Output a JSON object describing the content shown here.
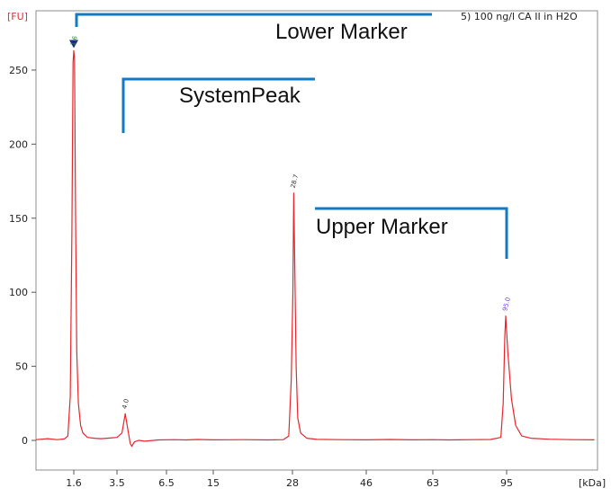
{
  "chart_data": {
    "type": "line",
    "title": "5) 100 ng/l CA II in H2O",
    "ylabel": "[FU]",
    "xlabel": "[kDa]",
    "ylim": [
      -20,
      290
    ],
    "yticks": [
      0,
      50,
      100,
      150,
      200,
      250
    ],
    "x_categorical_ticks": [
      "1.6",
      "3.5",
      "6.5",
      "15",
      "28",
      "46",
      "63",
      "95"
    ],
    "grid": true,
    "colors": {
      "trace": "#e8262b",
      "axis_label": "#e03030",
      "grid": "#c8cede",
      "window_line": "#2a9a6a",
      "marker_line": "#117ac2",
      "lower_marker_label": "#2e8b2e",
      "upper_marker_label": "#7a3fd8",
      "peak_label": "#333333",
      "marker_triangle": "#1b2a8a"
    },
    "series": [
      {
        "name": "",
        "points": [
          [
            0.0,
            0.5
          ],
          [
            0.5,
            1.2
          ],
          [
            0.9,
            0.5
          ],
          [
            1.2,
            1.0
          ],
          [
            1.35,
            3
          ],
          [
            1.45,
            30
          ],
          [
            1.52,
            140
          ],
          [
            1.57,
            255
          ],
          [
            1.6,
            263
          ],
          [
            1.63,
            258
          ],
          [
            1.68,
            150
          ],
          [
            1.73,
            60
          ],
          [
            1.8,
            25
          ],
          [
            1.9,
            10
          ],
          [
            2.0,
            5
          ],
          [
            2.2,
            2
          ],
          [
            2.5,
            1.5
          ],
          [
            2.8,
            1.2
          ],
          [
            3.5,
            2
          ],
          [
            3.8,
            5
          ],
          [
            4.0,
            18
          ],
          [
            4.15,
            8
          ],
          [
            4.3,
            -2
          ],
          [
            4.4,
            -4
          ],
          [
            4.55,
            -1
          ],
          [
            4.8,
            0
          ],
          [
            5.2,
            -0.5
          ],
          [
            6.0,
            0.3
          ],
          [
            8,
            0.5
          ],
          [
            10,
            0.3
          ],
          [
            12,
            0.6
          ],
          [
            15,
            0.4
          ],
          [
            20,
            0.5
          ],
          [
            24,
            0.3
          ],
          [
            26.5,
            0.5
          ],
          [
            27.4,
            3
          ],
          [
            27.8,
            40
          ],
          [
            28.1,
            100
          ],
          [
            28.3,
            167
          ],
          [
            28.5,
            130
          ],
          [
            28.9,
            50
          ],
          [
            29.3,
            15
          ],
          [
            30,
            5
          ],
          [
            31.5,
            1.5
          ],
          [
            34,
            0.7
          ],
          [
            40,
            0.5
          ],
          [
            46,
            0.4
          ],
          [
            52,
            0.6
          ],
          [
            58,
            0.4
          ],
          [
            63,
            0.5
          ],
          [
            70,
            0.3
          ],
          [
            80,
            0.5
          ],
          [
            88,
            0.6
          ],
          [
            92.5,
            2
          ],
          [
            93.5,
            25
          ],
          [
            94.2,
            70
          ],
          [
            94.6,
            84
          ],
          [
            95.2,
            60
          ],
          [
            95.8,
            28
          ],
          [
            96.5,
            10
          ],
          [
            97.5,
            3
          ],
          [
            99,
            1.5
          ],
          [
            102,
            0.8
          ],
          [
            106,
            0.5
          ],
          [
            109.5,
            0.4
          ]
        ]
      }
    ],
    "peak_labels": [
      {
        "text": "1.6",
        "x": 1.6,
        "y": 263,
        "color": "lower_marker_label"
      },
      {
        "text": "4.0",
        "x": 4.0,
        "y": 18,
        "color": "peak_label"
      },
      {
        "text": "28.7",
        "x": 28.3,
        "y": 167,
        "color": "peak_label"
      },
      {
        "text": "95.0",
        "x": 94.6,
        "y": 84,
        "color": "upper_marker_label"
      }
    ],
    "window_lines_x": [
      5.0,
      95
    ],
    "annotations": [
      {
        "text": "Lower Marker",
        "kind": "lower"
      },
      {
        "text": "SystemPeak",
        "kind": "system"
      },
      {
        "text": "Upper Marker",
        "kind": "upper"
      }
    ]
  }
}
